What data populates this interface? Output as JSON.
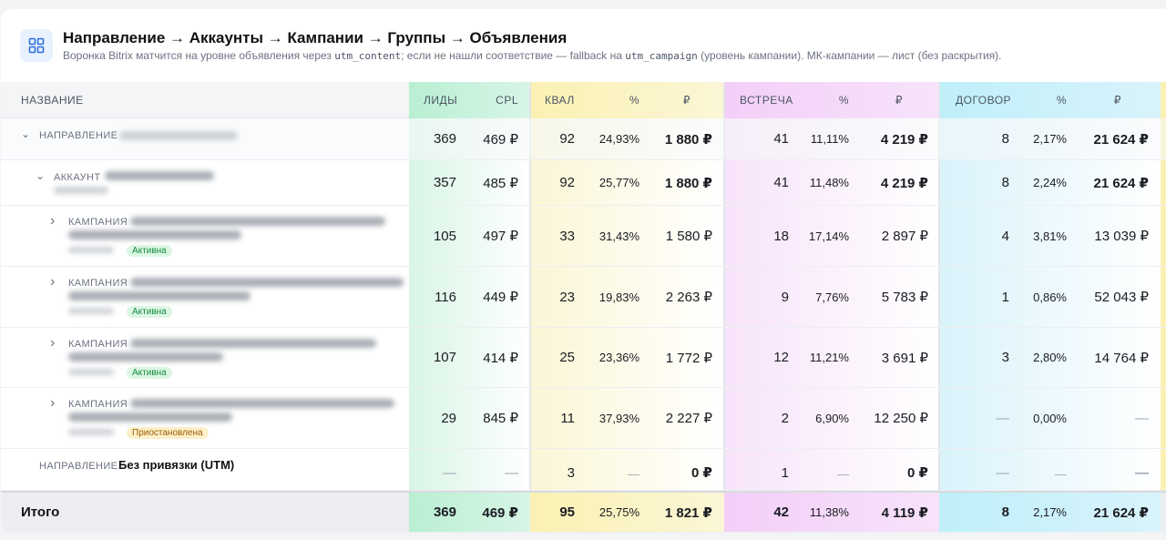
{
  "header": {
    "title": "Направление → Аккаунты → Кампании → Группы → Объявления",
    "subtitle_pre": "Воронка Bitrix матчится на уровне объявления через ",
    "subtitle_code1": "utm_content",
    "subtitle_mid": "; если не нашли соответствие — fallback на ",
    "subtitle_code2": "utm_campaign",
    "subtitle_post": " (уровень кампании). МК-кампании — лист (без раскрытия)."
  },
  "columns": {
    "name": "НАЗВАНИЕ",
    "leads": "ЛИДЫ",
    "cpl": "CPL",
    "qual": "КВАЛ",
    "qual_pct": "%",
    "qual_rub": "₽",
    "meet": "ВСТРЕЧА",
    "meet_pct": "%",
    "meet_rub": "₽",
    "deal": "ДОГОВОР",
    "deal_pct": "%",
    "deal_rub": "₽"
  },
  "colors": {
    "leads_bg": "#d8f5e6",
    "qual_bg": "#fbf6d6",
    "meet_bg": "#f7e3fa",
    "deal_bg": "#d9f3fb",
    "leads_head": "#b9efd3",
    "qual_head": "#fbf1b3",
    "meet_head": "#f3cff8",
    "deal_head": "#bfeffa"
  },
  "rows": [
    {
      "type": "direction",
      "label": "НАПРАВЛЕНИЕ",
      "leads": "369",
      "cpl": "469 ₽",
      "qual": "92",
      "qual_pct": "24,93%",
      "qual_rub": "1 880 ₽",
      "meet": "41",
      "meet_pct": "11,11%",
      "meet_rub": "4 219 ₽",
      "deal": "8",
      "deal_pct": "2,17%",
      "deal_rub": "21 624 ₽"
    },
    {
      "type": "account",
      "label": "АККАУНТ",
      "leads": "357",
      "cpl": "485 ₽",
      "qual": "92",
      "qual_pct": "25,77%",
      "qual_rub": "1 880 ₽",
      "meet": "41",
      "meet_pct": "11,48%",
      "meet_rub": "4 219 ₽",
      "deal": "8",
      "deal_pct": "2,24%",
      "deal_rub": "21 624 ₽"
    },
    {
      "type": "campaign",
      "label": "КАМПАНИЯ",
      "status": "Активна",
      "leads": "105",
      "cpl": "497 ₽",
      "qual": "33",
      "qual_pct": "31,43%",
      "qual_rub": "1 580 ₽",
      "meet": "18",
      "meet_pct": "17,14%",
      "meet_rub": "2 897 ₽",
      "deal": "4",
      "deal_pct": "3,81%",
      "deal_rub": "13 039 ₽"
    },
    {
      "type": "campaign",
      "label": "КАМПАНИЯ",
      "status": "Активна",
      "leads": "116",
      "cpl": "449 ₽",
      "qual": "23",
      "qual_pct": "19,83%",
      "qual_rub": "2 263 ₽",
      "meet": "9",
      "meet_pct": "7,76%",
      "meet_rub": "5 783 ₽",
      "deal": "1",
      "deal_pct": "0,86%",
      "deal_rub": "52 043 ₽"
    },
    {
      "type": "campaign",
      "label": "КАМПАНИЯ",
      "status": "Активна",
      "leads": "107",
      "cpl": "414 ₽",
      "qual": "25",
      "qual_pct": "23,36%",
      "qual_rub": "1 772 ₽",
      "meet": "12",
      "meet_pct": "11,21%",
      "meet_rub": "3 691 ₽",
      "deal": "3",
      "deal_pct": "2,80%",
      "deal_rub": "14 764 ₽"
    },
    {
      "type": "campaign",
      "label": "КАМПАНИЯ",
      "status": "Приостановлена",
      "leads": "29",
      "cpl": "845 ₽",
      "qual": "11",
      "qual_pct": "37,93%",
      "qual_rub": "2 227 ₽",
      "meet": "2",
      "meet_pct": "6,90%",
      "meet_rub": "12 250 ₽",
      "deal": "—",
      "deal_pct": "0,00%",
      "deal_rub": "—"
    },
    {
      "type": "utm",
      "label": "НАПРАВЛЕНИЕ",
      "name": "Без привязки (UTM)",
      "leads": "—",
      "cpl": "—",
      "qual": "3",
      "qual_pct": "—",
      "qual_rub": "0 ₽",
      "meet": "1",
      "meet_pct": "—",
      "meet_rub": "0 ₽",
      "deal": "—",
      "deal_pct": "—",
      "deal_rub": "—"
    }
  ],
  "total": {
    "label": "Итого",
    "leads": "369",
    "cpl": "469 ₽",
    "qual": "95",
    "qual_pct": "25,75%",
    "qual_rub": "1 821 ₽",
    "meet": "42",
    "meet_pct": "11,38%",
    "meet_rub": "4 119 ₽",
    "deal": "8",
    "deal_pct": "2,17%",
    "deal_rub": "21 624 ₽"
  }
}
